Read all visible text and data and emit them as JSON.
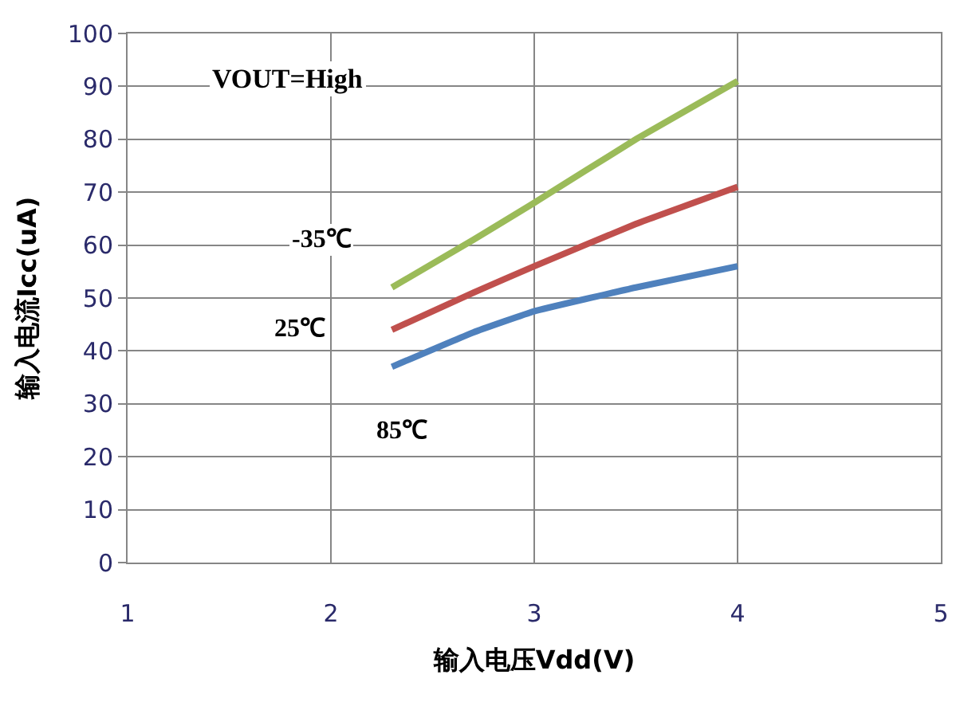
{
  "chart_data": {
    "type": "line",
    "xlabel": "输入电压Vdd(V)",
    "ylabel": "输入电流Icc(uA)",
    "annotations": [
      "VOUT=High"
    ],
    "x": [
      2.3,
      2.7,
      3,
      3.5,
      4
    ],
    "series": [
      {
        "name": "-35℃",
        "color": "#9bbb59",
        "values": [
          52,
          61,
          68,
          80,
          91
        ]
      },
      {
        "name": "25℃",
        "color": "#c0504d",
        "values": [
          44,
          51,
          56,
          64,
          71
        ]
      },
      {
        "name": "85℃",
        "color": "#4f81bd",
        "values": [
          37,
          43.5,
          47.5,
          52,
          56
        ]
      }
    ],
    "xlim": [
      1,
      5
    ],
    "xticks": [
      1,
      2,
      3,
      4,
      5
    ],
    "ylim": [
      0,
      100
    ],
    "yticks": [
      0,
      10,
      20,
      30,
      40,
      50,
      60,
      70,
      80,
      90,
      100
    ],
    "grid": true,
    "legend": false,
    "marker": "none",
    "line_style": "solid"
  }
}
